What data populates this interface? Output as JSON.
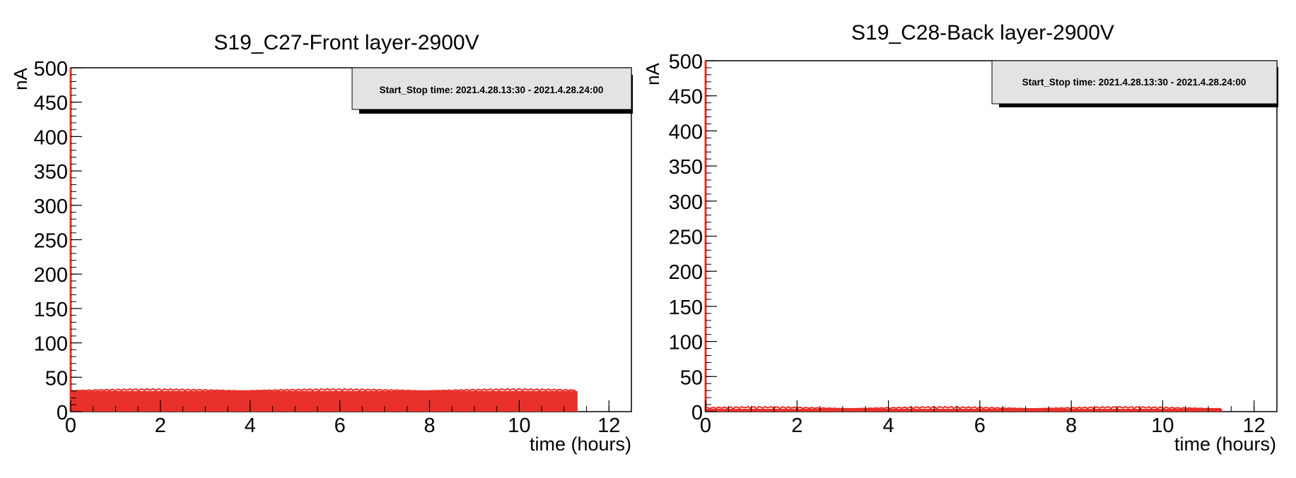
{
  "chart_data": [
    {
      "type": "area",
      "title": "S19_C27-Front layer-2900V",
      "xlabel": "time (hours)",
      "ylabel": "nA",
      "xlim": [
        0,
        12.5
      ],
      "ylim": [
        0,
        500
      ],
      "x_ticks": [
        0,
        2,
        4,
        6,
        8,
        10,
        12
      ],
      "y_ticks": [
        0,
        50,
        100,
        150,
        200,
        250,
        300,
        350,
        400,
        450,
        500
      ],
      "legend": "top-right",
      "annotation": "Start_Stop time: 2021.4.28.13:30 - 2021.4.28.24:00",
      "grid": false,
      "color": "#e8302a",
      "series": [
        {
          "x": [
            0,
            11.3
          ],
          "y": [
            30,
            30
          ]
        }
      ]
    },
    {
      "type": "area",
      "title": "S19_C28-Back layer-2900V",
      "xlabel": "time (hours)",
      "ylabel": "nA",
      "xlim": [
        0,
        12.5
      ],
      "ylim": [
        0,
        500
      ],
      "x_ticks": [
        0,
        2,
        4,
        6,
        8,
        10,
        12
      ],
      "y_ticks": [
        0,
        50,
        100,
        150,
        200,
        250,
        300,
        350,
        400,
        450,
        500
      ],
      "legend": "top-right",
      "annotation": "Start_Stop time: 2021.4.28.13:30 - 2021.4.28.24:00",
      "grid": false,
      "color": "#e8302a",
      "series": [
        {
          "x": [
            0,
            11.3
          ],
          "y": [
            4,
            4
          ]
        }
      ]
    }
  ]
}
